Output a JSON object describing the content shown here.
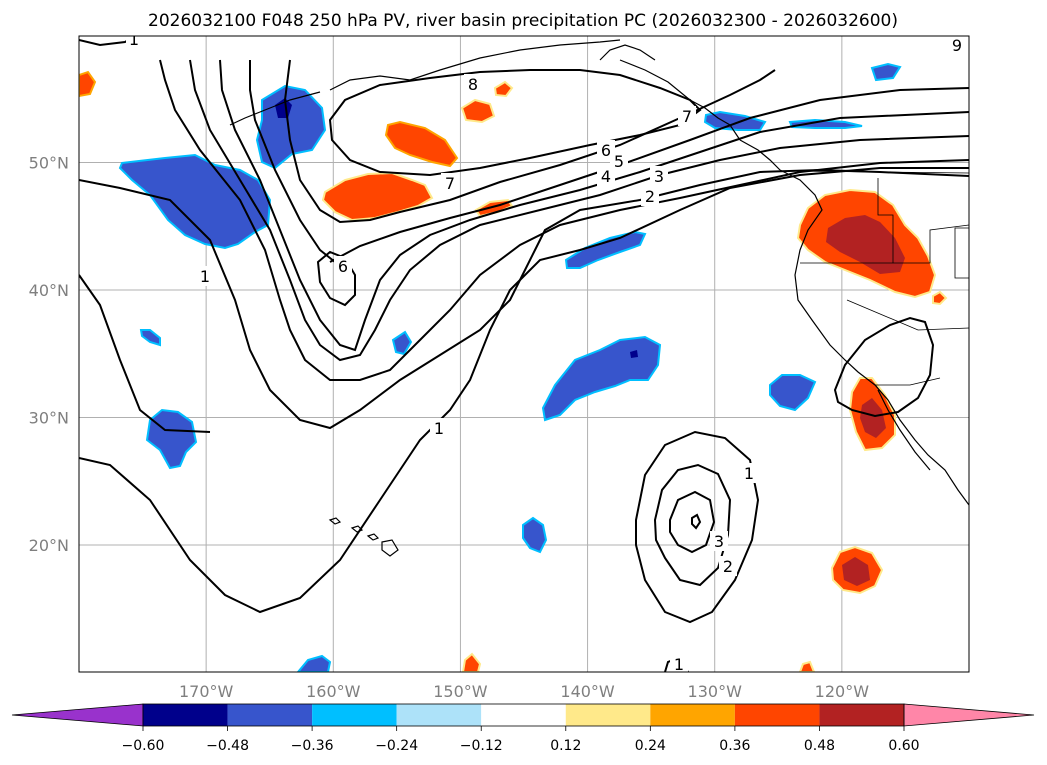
{
  "title": "2026032100 F048 250 hPa PV, river basin precipitation PC (2026032300 - 2026032600)",
  "chart_data": {
    "type": "map-contour",
    "title": "2026032100 F048 250 hPa PV, river basin precipitation PC (2026032300 - 2026032600)",
    "lon_range": [
      -180,
      -110
    ],
    "lat_range": [
      10,
      60
    ],
    "x_ticks": [
      "170°W",
      "160°W",
      "150°W",
      "140°W",
      "130°W",
      "120°W"
    ],
    "x_tick_values": [
      -170,
      -160,
      -150,
      -140,
      -130,
      -120
    ],
    "y_ticks": [
      "20°N",
      "30°N",
      "40°N",
      "50°N"
    ],
    "y_tick_values": [
      20,
      30,
      40,
      50
    ],
    "grid": true,
    "contour_variable": "250 hPa PV (PVU)",
    "contour_labels": [
      "1",
      "1",
      "1",
      "1",
      "1",
      "2",
      "3",
      "4",
      "5",
      "6",
      "6",
      "7",
      "7",
      "8",
      "9",
      "2",
      "3"
    ],
    "shading_variable": "river basin precipitation PC",
    "colorbar": {
      "tick_labels": [
        "−0.60",
        "−0.48",
        "−0.36",
        "−0.24",
        "−0.12",
        "0.12",
        "0.24",
        "0.36",
        "0.48",
        "0.60"
      ],
      "tick_values": [
        -0.6,
        -0.48,
        -0.36,
        -0.24,
        -0.12,
        0.12,
        0.24,
        0.36,
        0.48,
        0.6
      ],
      "colors": [
        "#9932cc",
        "#00008b",
        "#3755cc",
        "#00bfff",
        "#ade2f9",
        "#ffffff",
        "#ffe98a",
        "#ffa500",
        "#ff4500",
        "#b22222",
        "#ff86a8"
      ],
      "extend": "both"
    }
  }
}
